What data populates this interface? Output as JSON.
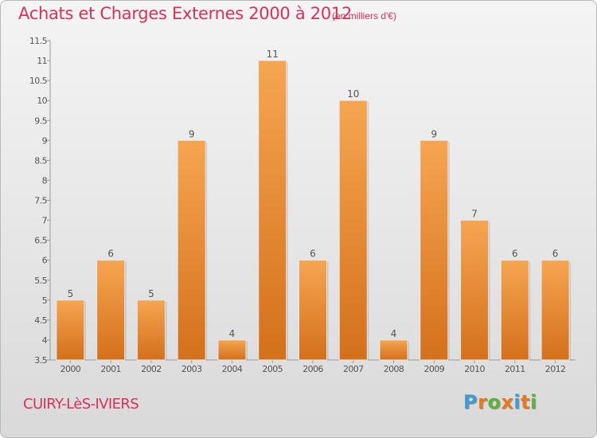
{
  "header": {
    "title": "Achats et Charges Externes 2000 à 2012",
    "subtitle": "(en milliers d'€)"
  },
  "footer": {
    "commune": "CUIRY-LèS-IVIERS",
    "logo_letters": [
      "P",
      "r",
      "o",
      "x",
      "i",
      "t",
      "i"
    ]
  },
  "colors": {
    "bar_top": "#f6a551",
    "bar_bottom": "#d4701c",
    "title": "#d8325a",
    "logo": [
      "#3f9ad6",
      "#e87a1d",
      "#5fb13a",
      "#e87a1d",
      "#3f9ad6",
      "#e87a1d",
      "#5fb13a"
    ]
  },
  "chart_data": {
    "type": "bar",
    "title": "Achats et Charges Externes 2000 à 2012",
    "ylabel": "",
    "xlabel": "",
    "categories": [
      "2000",
      "2001",
      "2002",
      "2003",
      "2004",
      "2005",
      "2006",
      "2007",
      "2008",
      "2009",
      "2010",
      "2011",
      "2012"
    ],
    "values": [
      5,
      6,
      5,
      9,
      4,
      11,
      6,
      10,
      4,
      9,
      7,
      6,
      6
    ],
    "ylim": [
      3.5,
      11.5
    ],
    "yticks": [
      "3.5",
      "4",
      "4.5",
      "5",
      "5.5",
      "6",
      "6.5",
      "7",
      "7.5",
      "8",
      "8.5",
      "9",
      "9.5",
      "10",
      "10.5",
      "11",
      "11.5"
    ],
    "grid": false
  }
}
